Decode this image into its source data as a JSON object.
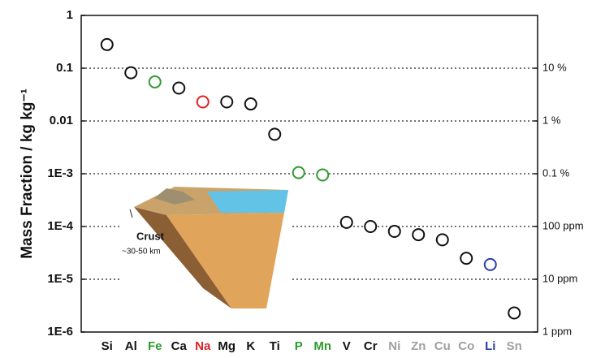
{
  "chart_data": {
    "type": "scatter",
    "ylabel": "Mass Fraction  /  kg kg⁻¹",
    "categories": [
      "Si",
      "Al",
      "Fe",
      "Ca",
      "Na",
      "Mg",
      "K",
      "Ti",
      "P",
      "Mn",
      "V",
      "Cr",
      "Ni",
      "Zn",
      "Cu",
      "Co",
      "Li",
      "Sn"
    ],
    "category_colors": [
      "#111111",
      "#111111",
      "#2e9a2e",
      "#111111",
      "#e02020",
      "#111111",
      "#111111",
      "#111111",
      "#2e9a2e",
      "#2e9a2e",
      "#111111",
      "#111111",
      "#a0a0a0",
      "#a0a0a0",
      "#a0a0a0",
      "#a0a0a0",
      "#2a3fa8",
      "#a0a0a0"
    ],
    "values": [
      0.28,
      0.082,
      0.055,
      0.042,
      0.023,
      0.023,
      0.021,
      0.0056,
      0.00105,
      0.00095,
      0.00012,
      0.0001,
      8.1e-05,
      7e-05,
      5.6e-05,
      2.5e-05,
      1.9e-05,
      2.3e-06
    ],
    "colors": [
      "#111111",
      "#111111",
      "#2e9a2e",
      "#111111",
      "#e02020",
      "#111111",
      "#111111",
      "#111111",
      "#2e9a2e",
      "#2e9a2e",
      "#111111",
      "#111111",
      "#111111",
      "#111111",
      "#111111",
      "#111111",
      "#2a3fa8",
      "#111111"
    ],
    "ylim": [
      1e-06,
      1
    ],
    "log_y": true,
    "yticks": [
      1,
      0.1,
      0.01,
      {
        "value": 0.001,
        "label": "1E-3"
      },
      {
        "value": 0.0001,
        "label": "1E-4"
      },
      {
        "value": 1e-05,
        "label": "1E-5"
      },
      {
        "value": 1e-06,
        "label": "1E-6"
      }
    ],
    "y2lim": [
      1e-06,
      1
    ],
    "y2ticks": [
      {
        "value": 0.1,
        "label": "10 %"
      },
      {
        "value": 0.01,
        "label": "1 %"
      },
      {
        "value": 0.001,
        "label": "0.1 %"
      },
      {
        "value": 0.0001,
        "label": "100 ppm"
      },
      {
        "value": 1e-05,
        "label": "10 ppm"
      },
      {
        "value": 1e-06,
        "label": "1 ppm"
      }
    ],
    "grid": true,
    "annotations": [
      "Crust",
      "~30-50 km"
    ]
  }
}
